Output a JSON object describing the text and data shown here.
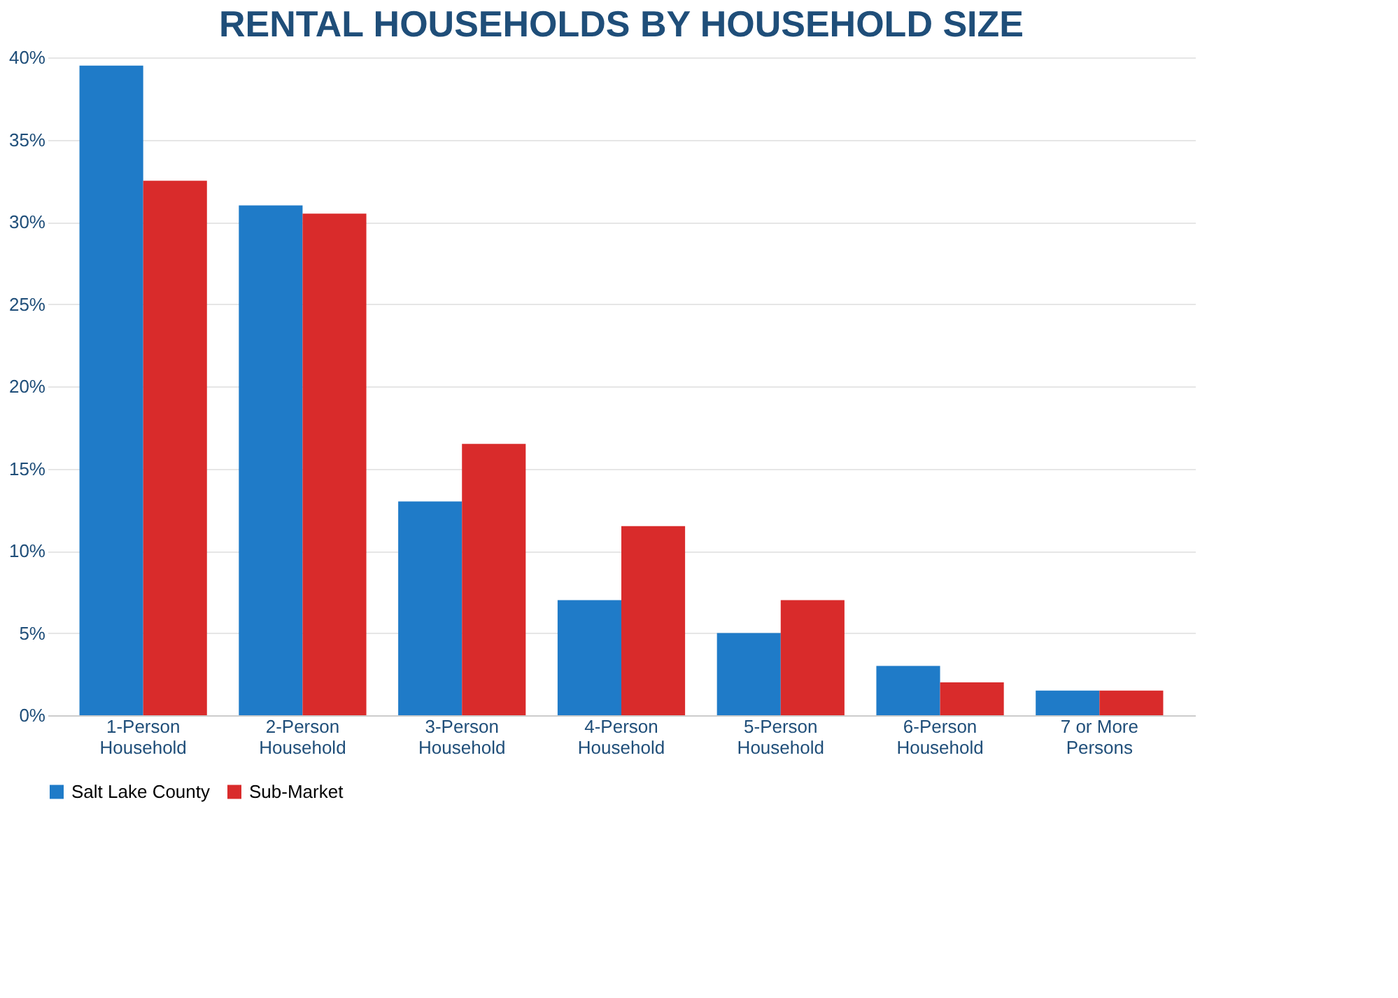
{
  "chart_data": {
    "type": "bar",
    "title": "RENTAL HOUSEHOLDS BY HOUSEHOLD SIZE",
    "categories": [
      "1-Person Household",
      "2-Person Household",
      "3-Person Household",
      "4-Person Household",
      "5-Person Household",
      "6-Person Household",
      "7 or More Persons"
    ],
    "series": [
      {
        "name": "Salt Lake County",
        "color": "#1f7bc8",
        "values": [
          39.5,
          31,
          13,
          7,
          5,
          3,
          1.5
        ]
      },
      {
        "name": "Sub-Market",
        "color": "#d92b2b",
        "values": [
          32.5,
          30.5,
          16.5,
          11.5,
          7,
          2,
          1.5
        ]
      }
    ],
    "ylim": [
      0,
      40
    ],
    "yticks": [
      {
        "value": 0,
        "label": "0%"
      },
      {
        "value": 5,
        "label": "5%"
      },
      {
        "value": 10,
        "label": "10%"
      },
      {
        "value": 15,
        "label": "15%"
      },
      {
        "value": 20,
        "label": "20%"
      },
      {
        "value": 25,
        "label": "25%"
      },
      {
        "value": 30,
        "label": "30%"
      },
      {
        "value": 35,
        "label": "35%"
      },
      {
        "value": 40,
        "label": "40%"
      }
    ],
    "grid": "y",
    "legend": "bottom"
  }
}
